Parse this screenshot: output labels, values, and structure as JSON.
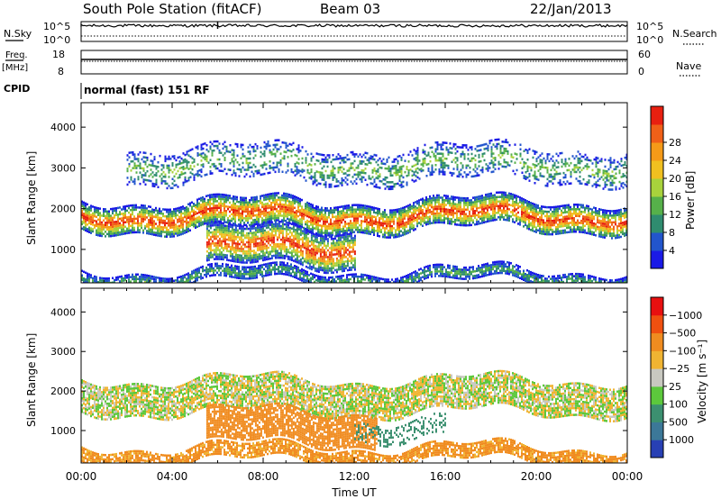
{
  "header": {
    "title": "South Pole Station (fitACF)",
    "beam": "Beam 03",
    "date": "22/Jan/2013"
  },
  "status_panels": {
    "nsky_label": "N.Sky",
    "nsearch_label": "N.Search",
    "nsky_ticks": [
      "10^5",
      "10^0"
    ],
    "nsearch_ticks": [
      "10^5",
      "10^0"
    ],
    "freq_label_line1": "Freq.",
    "freq_label_line2": "[MHz]",
    "freq_ticks": [
      "18",
      "8"
    ],
    "nave_label": "Nave",
    "nave_ticks": [
      "60",
      "0"
    ],
    "cpid_label": "CPID",
    "cpid_value": "normal (fast) 151 RF"
  },
  "chart_data": [
    {
      "type": "heatmap",
      "title": "",
      "quantity": "Power",
      "ylabel": "Slant Range [km]",
      "ylim": [
        180,
        4600
      ],
      "yticks": [
        "1000",
        "2000",
        "3000",
        "4000"
      ],
      "xlim": [
        "00:00",
        "24:00"
      ],
      "colorbar_label": "Power [dB]",
      "colorbar_ticks": [
        "4",
        "8",
        "12",
        "16",
        "20",
        "24",
        "28"
      ],
      "colorbar_colors": [
        "#1a1ae6",
        "#2255cc",
        "#2f8c6f",
        "#56b04a",
        "#a8d23c",
        "#f0c020",
        "#f59a18",
        "#f06018",
        "#e82010"
      ],
      "features": [
        {
          "name": "main-band",
          "range_km": [
            1500,
            2200
          ],
          "time_h": [
            0,
            24
          ],
          "peak_power_db": 28
        },
        {
          "name": "near-range-enhancement",
          "range_km": [
            600,
            1500
          ],
          "time_h": [
            5.5,
            12
          ],
          "peak_power_db": 28
        },
        {
          "name": "far-range-patches",
          "range_km": [
            2700,
            3500
          ],
          "time_h": [
            2,
            24
          ],
          "peak_power_db": 12
        },
        {
          "name": "ground-scatter-strip",
          "range_km": [
            200,
            500
          ],
          "time_h": [
            0,
            24
          ],
          "peak_power_db": 10
        }
      ]
    },
    {
      "type": "heatmap",
      "title": "",
      "quantity": "Velocity",
      "ylabel": "Slant Range [km]",
      "ylim": [
        180,
        4600
      ],
      "yticks": [
        "1000",
        "2000",
        "3000",
        "4000"
      ],
      "xlim": [
        "00:00",
        "24:00"
      ],
      "xticks": [
        "00:00",
        "04:00",
        "08:00",
        "12:00",
        "16:00",
        "20:00",
        "00:00"
      ],
      "xlabel": "Time UT",
      "colorbar_label": "Velocity [m s⁻¹]",
      "colorbar_ticks": [
        "1000",
        "500",
        "100",
        "25",
        "−25",
        "−100",
        "−500",
        "−1000"
      ],
      "colorbar_colors": [
        "#2840b4",
        "#3c7898",
        "#3c9070",
        "#5cc83c",
        "#c8c8c0",
        "#f0b432",
        "#f08c20",
        "#f05010",
        "#e81010"
      ],
      "features": [
        {
          "name": "ground-scatter-band",
          "range_km": [
            1500,
            2300
          ],
          "time_h": [
            0,
            24
          ],
          "velocity_ms": 0
        },
        {
          "name": "negative-velocity-region",
          "range_km": [
            700,
            1500
          ],
          "time_h": [
            5.5,
            13
          ],
          "velocity_ms": -300
        },
        {
          "name": "positive-velocity-patch",
          "range_km": [
            800,
            1300
          ],
          "time_h": [
            12,
            16
          ],
          "velocity_ms": 400
        },
        {
          "name": "near-range-strip",
          "range_km": [
            250,
            600
          ],
          "time_h": [
            0,
            24
          ],
          "velocity_ms": -150
        }
      ]
    }
  ]
}
